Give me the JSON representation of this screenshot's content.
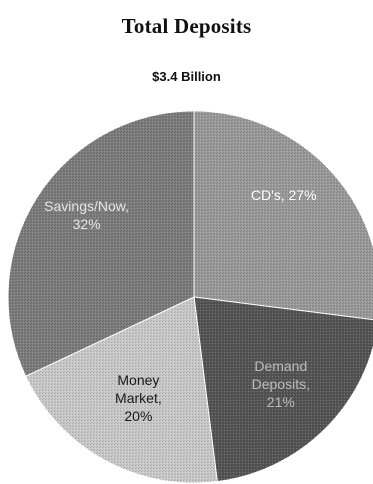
{
  "chart_data": {
    "type": "pie",
    "title": "Total Deposits",
    "subtitle": "$3.4 Billion",
    "slices": [
      {
        "label_lines": [
          "CD's, 27%"
        ],
        "value": 27,
        "color": "#9a9a9a",
        "text_color": "#ffffff"
      },
      {
        "label_lines": [
          "Demand",
          "Deposits,",
          "21%"
        ],
        "value": 21,
        "color": "#555555",
        "text_color": "#bdbdbd"
      },
      {
        "label_lines": [
          "Money",
          "Market,",
          "20%"
        ],
        "value": 20,
        "color": "#c9c9c9",
        "text_color": "#1a1a1a"
      },
      {
        "label_lines": [
          "Savings/Now,",
          "32%"
        ],
        "value": 32,
        "color": "#7c7c7c",
        "text_color": "#e6e6e6"
      }
    ]
  }
}
